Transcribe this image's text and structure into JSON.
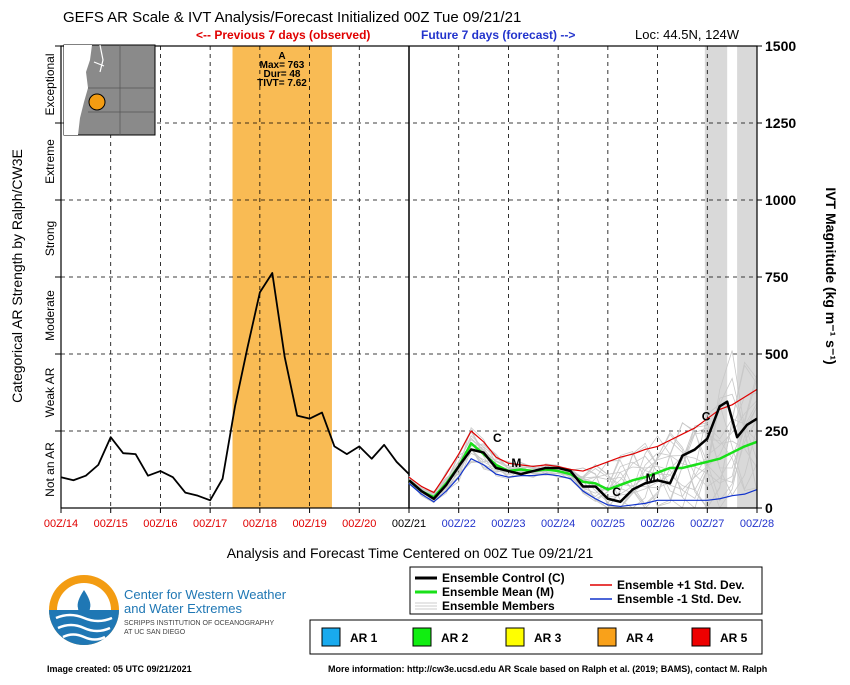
{
  "header": {
    "title": "GEFS AR Scale & IVT Analysis/Forecast Initialized 00Z Tue 09/21/21",
    "previous_label": "<-- Previous 7 days (observed)",
    "future_label": "Future 7 days (forecast) -->",
    "location": "Loc: 44.5N, 124W"
  },
  "chart_data": {
    "type": "line",
    "xlabel": "Analysis and Forecast Time Centered on 00Z Tue 09/21/21",
    "ylabel_left": "Categorical AR Strength by Ralph/CW3E",
    "ylabel_right": "IVT Magnitude (kg m⁻¹ s⁻¹)",
    "xlim": [
      0,
      14
    ],
    "ylim": [
      0,
      1500
    ],
    "x_ticks": [
      {
        "x": 0,
        "label": "00Z/14",
        "color": "#e00000"
      },
      {
        "x": 1,
        "label": "00Z/15",
        "color": "#e00000"
      },
      {
        "x": 2,
        "label": "00Z/16",
        "color": "#e00000"
      },
      {
        "x": 3,
        "label": "00Z/17",
        "color": "#e00000"
      },
      {
        "x": 4,
        "label": "00Z/18",
        "color": "#e00000"
      },
      {
        "x": 5,
        "label": "00Z/19",
        "color": "#e00000"
      },
      {
        "x": 6,
        "label": "00Z/20",
        "color": "#e00000"
      },
      {
        "x": 7,
        "label": "00Z/21",
        "color": "#000000"
      },
      {
        "x": 8,
        "label": "00Z/22",
        "color": "#2233cc"
      },
      {
        "x": 9,
        "label": "00Z/23",
        "color": "#2233cc"
      },
      {
        "x": 10,
        "label": "00Z/24",
        "color": "#2233cc"
      },
      {
        "x": 11,
        "label": "00Z/25",
        "color": "#2233cc"
      },
      {
        "x": 12,
        "label": "00Z/26",
        "color": "#2233cc"
      },
      {
        "x": 13,
        "label": "00Z/27",
        "color": "#2233cc"
      },
      {
        "x": 14,
        "label": "00Z/28",
        "color": "#2233cc"
      }
    ],
    "y_ticks": [
      {
        "y": 0,
        "label": "0"
      },
      {
        "y": 250,
        "label": "250"
      },
      {
        "y": 500,
        "label": "500"
      },
      {
        "y": 750,
        "label": "750"
      },
      {
        "y": 1000,
        "label": "1000"
      },
      {
        "y": 1250,
        "label": "1250"
      },
      {
        "y": 1500,
        "label": "1500"
      }
    ],
    "categories": [
      {
        "label": "Not an AR",
        "from": 0,
        "to": 250
      },
      {
        "label": "Weak AR",
        "from": 250,
        "to": 500
      },
      {
        "label": "Moderate",
        "from": 500,
        "to": 750
      },
      {
        "label": "Strong",
        "from": 750,
        "to": 1000
      },
      {
        "label": "Extreme",
        "from": 1000,
        "to": 1250
      },
      {
        "label": "Exceptional",
        "from": 1250,
        "to": 1500
      }
    ],
    "ar_event": {
      "x_start": 3.45,
      "x_end": 5.45,
      "color": "#f9bb54",
      "label": "A",
      "max": "Max= 763",
      "dur": "Dur= 48",
      "tivt": "TIVT= 7.62"
    },
    "gray_bands": [
      [
        12.95,
        13.4
      ],
      [
        13.6,
        14.0
      ]
    ],
    "observed": {
      "x": [
        0,
        0.25,
        0.5,
        0.75,
        1.0,
        1.25,
        1.5,
        1.75,
        2.0,
        2.25,
        2.5,
        2.75,
        3.0,
        3.25,
        3.5,
        3.75,
        4.0,
        4.25,
        4.5,
        4.75,
        5.0,
        5.25,
        5.5,
        5.75,
        6.0,
        6.25,
        6.5,
        6.75,
        7.0
      ],
      "y": [
        100,
        90,
        105,
        140,
        230,
        178,
        175,
        105,
        120,
        100,
        50,
        40,
        25,
        95,
        330,
        520,
        700,
        763,
        490,
        300,
        290,
        310,
        200,
        175,
        200,
        160,
        205,
        150,
        110
      ]
    },
    "series": [
      {
        "name": "Ensemble Control (C)",
        "color": "#000000",
        "x": [
          7.0,
          7.25,
          7.5,
          7.75,
          8.0,
          8.25,
          8.5,
          8.75,
          9.0,
          9.25,
          9.5,
          9.75,
          10.0,
          10.25,
          10.5,
          10.75,
          11.0,
          11.25,
          11.5,
          11.75,
          12.0,
          12.25,
          12.5,
          12.75,
          13.0,
          13.25,
          13.4,
          13.6,
          13.8,
          14.0
        ],
        "y": [
          90,
          55,
          30,
          75,
          135,
          190,
          180,
          130,
          120,
          110,
          120,
          130,
          130,
          120,
          70,
          70,
          30,
          20,
          60,
          80,
          90,
          80,
          170,
          190,
          225,
          330,
          345,
          230,
          270,
          290
        ]
      },
      {
        "name": "Ensemble Mean (M)",
        "color": "#19e019",
        "x": [
          7.0,
          7.25,
          7.5,
          7.75,
          8.0,
          8.25,
          8.5,
          8.75,
          9.0,
          9.25,
          9.5,
          9.75,
          10.0,
          10.25,
          10.5,
          10.75,
          11.0,
          11.25,
          11.5,
          11.75,
          12.0,
          12.25,
          12.5,
          12.75,
          13.0,
          13.25,
          13.5,
          13.75,
          14.0
        ],
        "y": [
          90,
          55,
          35,
          80,
          135,
          210,
          175,
          140,
          120,
          125,
          120,
          125,
          120,
          110,
          85,
          80,
          60,
          75,
          90,
          100,
          115,
          130,
          130,
          140,
          150,
          160,
          180,
          200,
          215
        ]
      },
      {
        "name": "Ensemble +1 Std. Dev.",
        "color": "#e00000",
        "x": [
          7.0,
          7.25,
          7.5,
          7.75,
          8.0,
          8.25,
          8.5,
          8.75,
          9.0,
          9.25,
          9.5,
          9.75,
          10.0,
          10.25,
          10.5,
          10.75,
          11.0,
          11.25,
          11.5,
          11.75,
          12.0,
          12.25,
          12.5,
          12.75,
          13.0,
          13.25,
          13.5,
          13.75,
          14.0
        ],
        "y": [
          100,
          70,
          50,
          110,
          175,
          250,
          215,
          165,
          145,
          140,
          135,
          140,
          135,
          125,
          120,
          135,
          150,
          165,
          175,
          190,
          200,
          220,
          240,
          260,
          290,
          320,
          335,
          360,
          385
        ]
      },
      {
        "name": "Ensemble -1 Std. Dev.",
        "color": "#1133cc",
        "x": [
          7.0,
          7.25,
          7.5,
          7.75,
          8.0,
          8.25,
          8.5,
          8.75,
          9.0,
          9.25,
          9.5,
          9.75,
          10.0,
          10.25,
          10.5,
          10.75,
          11.0,
          11.25,
          11.5,
          11.75,
          12.0,
          12.25,
          12.5,
          12.75,
          13.0,
          13.25,
          13.5,
          13.75,
          14.0
        ],
        "y": [
          80,
          45,
          20,
          55,
          100,
          160,
          140,
          110,
          100,
          105,
          105,
          110,
          105,
          95,
          55,
          30,
          10,
          5,
          10,
          15,
          25,
          25,
          25,
          25,
          25,
          30,
          40,
          45,
          60
        ]
      }
    ],
    "members_label": "Ensemble Members",
    "ar_legend": [
      {
        "label": "AR 1",
        "color": "#19aaee"
      },
      {
        "label": "AR 2",
        "color": "#11ee11"
      },
      {
        "label": "AR 3",
        "color": "#ffff00"
      },
      {
        "label": "AR 4",
        "color": "#f9a11a"
      },
      {
        "label": "AR 5",
        "color": "#ee0000"
      }
    ]
  },
  "logo": {
    "line1": "Center for Western Weather",
    "line2": "and Water Extremes",
    "line3": "SCRIPPS INSTITUTION OF OCEANOGRAPHY",
    "line4": "AT UC SAN DIEGO"
  },
  "footer": {
    "created": "Image created: 05 UTC 09/21/2021",
    "more_info": "More information: http://cw3e.ucsd.edu  AR Scale based on Ralph et al. (2019; BAMS), contact M. Ralph"
  },
  "colors": {
    "accent_red": "#e00000",
    "accent_blue": "#2233cc",
    "logo_blue": "#1f77b4",
    "logo_orange": "#f39c12"
  }
}
